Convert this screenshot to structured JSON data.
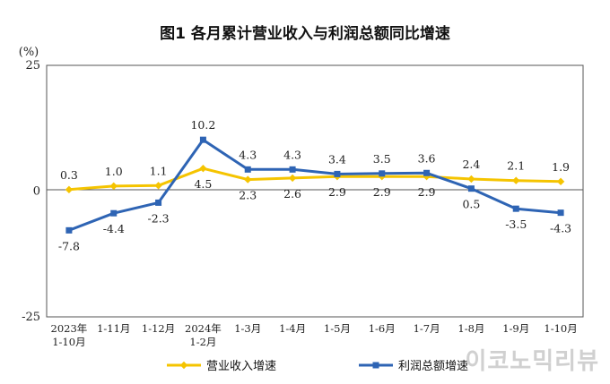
{
  "chart_data": {
    "type": "line",
    "title": "图1  各月累计营业收入与利润总额同比增速",
    "ylabel": "(%)",
    "ylim": [
      -25,
      25
    ],
    "yticks": [
      "25",
      "0",
      "-25"
    ],
    "categories": [
      [
        "2023年",
        "1-10月"
      ],
      [
        "1-11月"
      ],
      [
        "1-12月"
      ],
      [
        "2024年",
        "1-2月"
      ],
      [
        "1-3月"
      ],
      [
        "1-4月"
      ],
      [
        "1-5月"
      ],
      [
        "1-6月"
      ],
      [
        "1-7月"
      ],
      [
        "1-8月"
      ],
      [
        "1-9月"
      ],
      [
        "1-10月"
      ]
    ],
    "series": [
      {
        "name": "营业收入增速",
        "color": "#f5c400",
        "marker": "diamond",
        "values": [
          0.3,
          1.0,
          1.1,
          4.5,
          2.3,
          2.6,
          2.9,
          2.9,
          2.9,
          2.4,
          2.1,
          1.9
        ],
        "labels": [
          "0.3",
          "1.0",
          "1.1",
          "4.5",
          "2.3",
          "2.6",
          "2.9",
          "2.9",
          "2.9",
          "2.4",
          "2.1",
          "1.9"
        ]
      },
      {
        "name": "利润总额增速",
        "color": "#2e64b4",
        "marker": "square",
        "values": [
          -7.8,
          -4.4,
          -2.3,
          10.2,
          4.3,
          4.3,
          3.4,
          3.5,
          3.6,
          0.5,
          -3.5,
          -4.3
        ],
        "labels": [
          "-7.8",
          "-4.4",
          "-2.3",
          "10.2",
          "4.3",
          "4.3",
          "3.4",
          "3.5",
          "3.6",
          "0.5",
          "-3.5",
          "-4.3"
        ]
      }
    ],
    "grid": false,
    "legend_position": "bottom"
  },
  "watermark": "이코노믹리뷰"
}
